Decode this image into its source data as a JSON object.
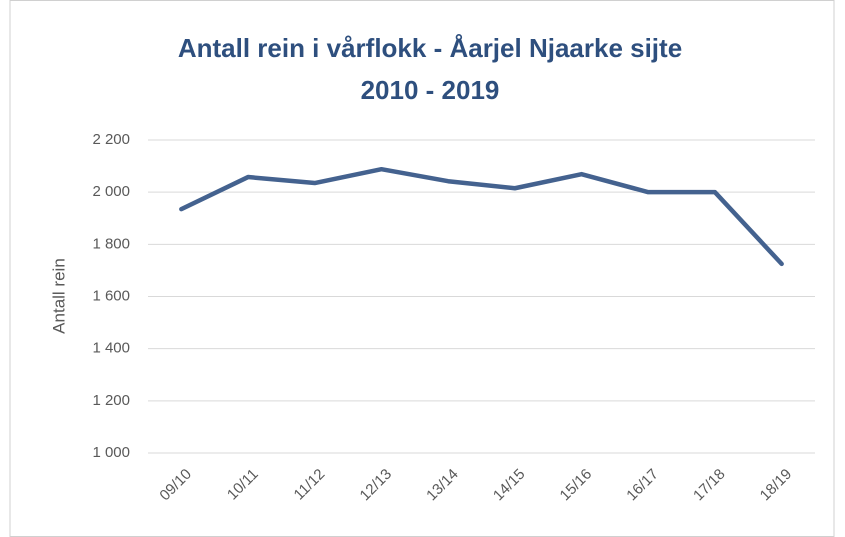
{
  "chart_data": {
    "type": "line",
    "title": [
      "Antall rein i vårflokk - Åarjel Njaarke sijte",
      "2010 - 2019"
    ],
    "ylabel": "Antall rein",
    "categories": [
      "09/10",
      "10/11",
      "11/12",
      "12/13",
      "13/14",
      "14/15",
      "15/16",
      "16/17",
      "17/18",
      "18/19"
    ],
    "series": [
      {
        "name": "Antall rein",
        "color": "#44628f",
        "values": [
          1935,
          2058,
          2035,
          2088,
          2042,
          2015,
          2069,
          2000,
          2000,
          1725
        ]
      }
    ],
    "ylim": [
      1000,
      2200
    ],
    "yticks": [
      {
        "value": 1000,
        "label": "1 000"
      },
      {
        "value": 1200,
        "label": "1 200"
      },
      {
        "value": 1400,
        "label": "1 400"
      },
      {
        "value": 1600,
        "label": "1 600"
      },
      {
        "value": 1800,
        "label": "1 800"
      },
      {
        "value": 2000,
        "label": "2 000"
      },
      {
        "value": 2200,
        "label": "2 200"
      }
    ],
    "grid": true
  }
}
